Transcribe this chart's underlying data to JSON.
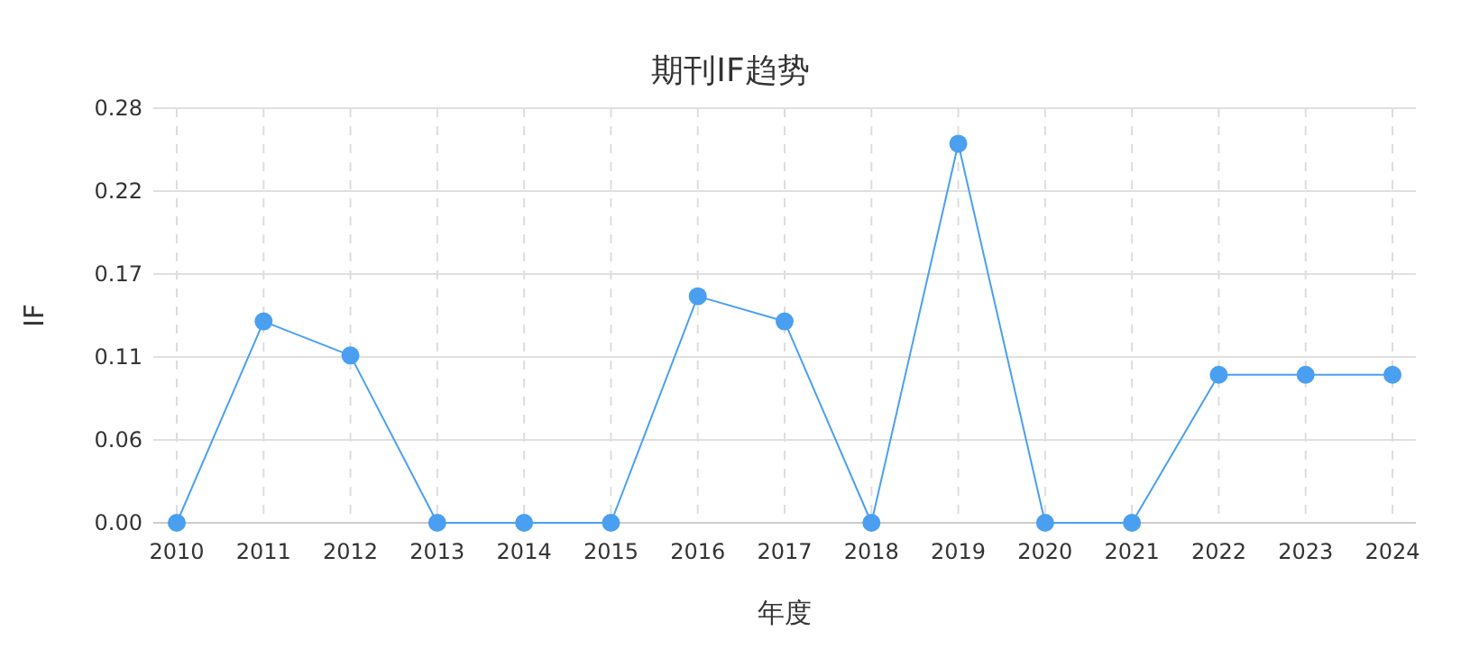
{
  "chart_data": {
    "type": "line",
    "title": "期刊IF趋势",
    "xlabel": "年度",
    "ylabel": "IF",
    "categories": [
      "2010",
      "2011",
      "2012",
      "2013",
      "2014",
      "2015",
      "2016",
      "2017",
      "2018",
      "2019",
      "2020",
      "2021",
      "2022",
      "2023",
      "2024"
    ],
    "series": [
      {
        "color": "#4a9ff0",
        "values": [
          0,
          0.136,
          0.113,
          0,
          0,
          0,
          0.153,
          0.136,
          0,
          0.256,
          0,
          0,
          0.1,
          0.1,
          0.1
        ]
      }
    ],
    "ylim": [
      0,
      0.28
    ],
    "yticks": [
      {
        "value": 0,
        "label": "0.00"
      },
      {
        "value": 0.056,
        "label": "0.06"
      },
      {
        "value": 0.112,
        "label": "0.11"
      },
      {
        "value": 0.168,
        "label": "0.17"
      },
      {
        "value": 0.224,
        "label": "0.22"
      },
      {
        "value": 0.28,
        "label": "0.28"
      }
    ],
    "grid": true,
    "marker": "circle",
    "line_style": "solid"
  }
}
